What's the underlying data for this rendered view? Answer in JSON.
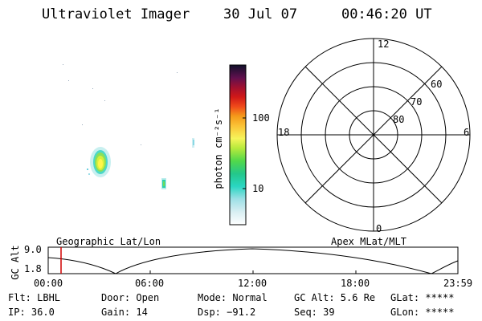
{
  "header": {
    "instrument": "Ultraviolet Imager",
    "date": "30 Jul 07",
    "time": "00:46:20 UT"
  },
  "colorbar": {
    "label": "photon cm⁻²s⁻¹",
    "ticks": [
      "100",
      "10"
    ]
  },
  "polar_plot": {
    "mlt_labels": [
      "12",
      "18",
      "6",
      "0"
    ],
    "lat_labels": [
      "60",
      "70",
      "80"
    ]
  },
  "track_plot": {
    "left_title": "Geographic Lat/Lon",
    "right_title": "Apex MLat/MLT",
    "ylabel": "GC Alt",
    "ytick_top": "9.0",
    "ytick_bottom": "1.8",
    "xticks": [
      "00:00",
      "06:00",
      "12:00",
      "18:00",
      "23:59"
    ]
  },
  "info": {
    "flt": "Flt: LBHL",
    "ip": "IP: 36.0",
    "door": "Door: Open",
    "gain": "Gain: 14",
    "mode": "Mode: Normal",
    "dsp": "Dsp:  −91.2",
    "gc_alt": "GC Alt: 5.6 Re",
    "seq": "Seq: 39",
    "glat": "GLat: *****",
    "glon": "GLon: *****"
  }
}
